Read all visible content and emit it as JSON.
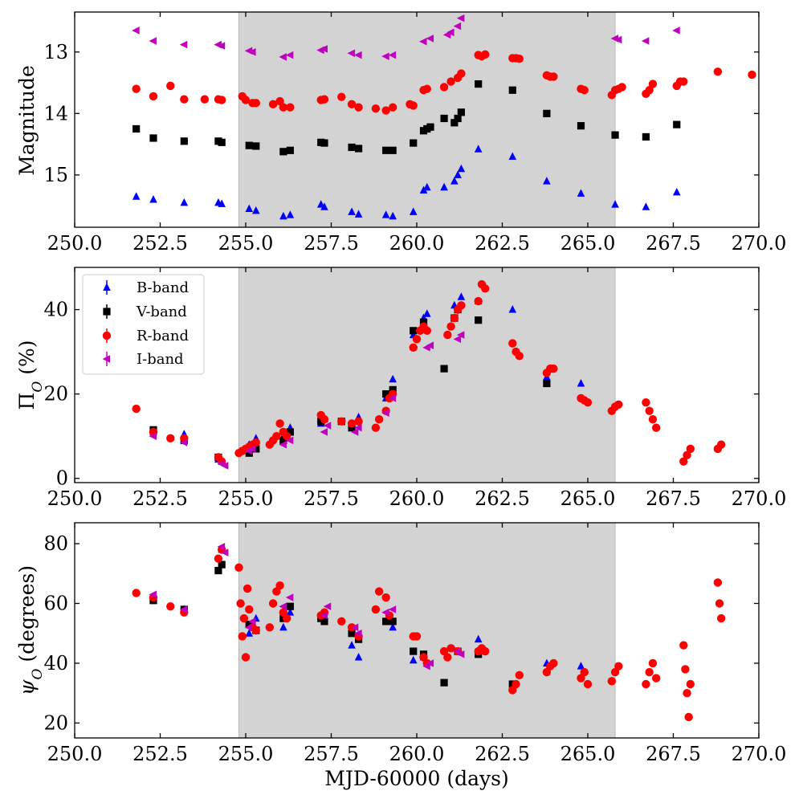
{
  "figure": {
    "xlabel": "MJD-60000 (days)",
    "colors": {
      "B": "#0000ff",
      "V": "#000000",
      "R": "#ff0000",
      "I": "#bf00bf",
      "shade": "#d3d3d3"
    }
  },
  "legend": [
    {
      "band": "B",
      "label": "B-band",
      "marker": "triangle-up",
      "color": "#0000ff"
    },
    {
      "band": "V",
      "label": "V-band",
      "marker": "square",
      "color": "#000000"
    },
    {
      "band": "R",
      "label": "R-band",
      "marker": "circle",
      "color": "#ff0000"
    },
    {
      "band": "I",
      "label": "I-band",
      "marker": "triangle-left",
      "color": "#bf00bf"
    }
  ],
  "chart_data": [
    {
      "type": "scatter",
      "id": "magnitude",
      "title": "",
      "xlabel": "",
      "ylabel": "Magnitude",
      "xlim": [
        250,
        270
      ],
      "ylim": [
        15.85,
        12.35
      ],
      "y_inverted": true,
      "xticks": [
        "250.0",
        "252.5",
        "255.0",
        "257.5",
        "260.0",
        "262.5",
        "265.0",
        "267.5",
        "270.0"
      ],
      "yticks": [
        "13",
        "14",
        "15"
      ],
      "shaded_region": [
        254.8,
        265.8
      ],
      "series": [
        {
          "name": "B-band",
          "x": [
            251.8,
            252.3,
            253.2,
            254.2,
            254.3,
            255.1,
            255.3,
            256.1,
            256.3,
            257.2,
            257.3,
            258.1,
            258.3,
            259.1,
            259.3,
            259.9,
            260.2,
            260.3,
            260.8,
            261.1,
            261.2,
            261.3,
            261.8,
            262.8,
            263.8,
            264.8,
            265.8,
            266.7,
            267.6
          ],
          "y": [
            15.35,
            15.4,
            15.45,
            15.45,
            15.47,
            15.55,
            15.58,
            15.67,
            15.65,
            15.48,
            15.52,
            15.6,
            15.64,
            15.65,
            15.67,
            15.6,
            15.25,
            15.2,
            15.2,
            15.1,
            15.0,
            14.9,
            14.58,
            14.7,
            15.1,
            15.3,
            15.48,
            15.52,
            15.28
          ]
        },
        {
          "name": "V-band",
          "x": [
            251.8,
            252.3,
            253.2,
            254.2,
            254.3,
            255.1,
            255.3,
            256.1,
            256.3,
            257.2,
            257.3,
            258.1,
            258.3,
            259.1,
            259.3,
            259.9,
            260.2,
            260.3,
            260.4,
            260.8,
            261.1,
            261.2,
            261.3,
            261.8,
            262.8,
            263.8,
            264.8,
            265.8,
            266.7,
            267.6
          ],
          "y": [
            14.25,
            14.4,
            14.45,
            14.45,
            14.47,
            14.52,
            14.53,
            14.62,
            14.6,
            14.47,
            14.48,
            14.55,
            14.57,
            14.6,
            14.6,
            14.48,
            14.28,
            14.25,
            14.22,
            14.08,
            14.15,
            14.08,
            13.98,
            13.52,
            13.62,
            14.0,
            14.2,
            14.35,
            14.38,
            14.18
          ]
        },
        {
          "name": "R-band",
          "x": [
            251.8,
            252.3,
            252.8,
            253.2,
            253.8,
            254.2,
            254.3,
            254.9,
            255.0,
            255.2,
            255.3,
            255.8,
            256.0,
            256.1,
            256.3,
            257.2,
            257.3,
            257.8,
            258.1,
            258.3,
            258.8,
            259.1,
            259.3,
            259.8,
            259.9,
            260.2,
            260.3,
            260.8,
            261.0,
            261.2,
            261.3,
            261.8,
            261.9,
            262.0,
            262.8,
            262.9,
            263.0,
            263.8,
            263.9,
            264.0,
            264.8,
            264.9,
            265.7,
            265.8,
            265.9,
            266.0,
            266.7,
            266.8,
            266.9,
            267.6,
            267.7,
            267.8,
            268.8,
            269.8
          ],
          "y": [
            13.6,
            13.72,
            13.55,
            13.77,
            13.77,
            13.77,
            13.78,
            13.72,
            13.78,
            13.83,
            13.83,
            13.85,
            13.8,
            13.9,
            13.9,
            13.78,
            13.77,
            13.73,
            13.85,
            13.9,
            13.92,
            13.95,
            13.9,
            13.85,
            13.87,
            13.62,
            13.6,
            13.57,
            13.48,
            13.42,
            13.35,
            13.05,
            13.07,
            13.04,
            13.1,
            13.1,
            13.11,
            13.38,
            13.4,
            13.4,
            13.6,
            13.62,
            13.7,
            13.62,
            13.6,
            13.57,
            13.68,
            13.62,
            13.52,
            13.55,
            13.48,
            13.48,
            13.32,
            13.37
          ]
        },
        {
          "name": "I-band",
          "x": [
            251.8,
            252.3,
            253.2,
            254.2,
            254.3,
            255.1,
            255.2,
            256.1,
            256.3,
            257.2,
            257.3,
            258.1,
            258.3,
            259.1,
            259.3,
            260.2,
            260.4,
            260.9,
            261.0,
            261.2,
            261.3,
            265.8,
            265.9,
            266.7,
            267.6
          ],
          "y": [
            12.65,
            12.82,
            12.88,
            12.88,
            12.9,
            12.98,
            13.0,
            13.08,
            13.05,
            12.97,
            12.95,
            13.02,
            13.05,
            13.07,
            13.05,
            12.83,
            12.78,
            12.72,
            12.68,
            12.58,
            12.45,
            12.78,
            12.8,
            12.82,
            12.65
          ]
        }
      ]
    },
    {
      "type": "scatter",
      "id": "polarization",
      "title": "",
      "xlabel": "",
      "ylabel": "Π_O (%)",
      "xlim": [
        250,
        270
      ],
      "ylim": [
        -1,
        50
      ],
      "xticks": [
        "250.0",
        "252.5",
        "255.0",
        "257.5",
        "260.0",
        "262.5",
        "265.0",
        "267.5",
        "270.0"
      ],
      "yticks": [
        "0",
        "20",
        "40"
      ],
      "shaded_region": [
        254.8,
        265.8
      ],
      "legend_position": "top-left",
      "series": [
        {
          "name": "B-band",
          "x": [
            252.3,
            253.2,
            254.2,
            254.3,
            255.1,
            255.3,
            256.1,
            256.3,
            257.2,
            257.3,
            258.1,
            258.3,
            259.1,
            259.3,
            259.9,
            260.2,
            260.3,
            261.1,
            261.3,
            261.8,
            262.8,
            263.8,
            264.8
          ],
          "y": [
            11,
            10.5,
            4.5,
            4,
            8,
            9.5,
            10,
            12,
            13,
            14,
            13,
            14.5,
            19,
            23.5,
            34,
            38,
            39,
            41,
            43,
            42,
            40,
            24,
            22.5
          ]
        },
        {
          "name": "V-band",
          "x": [
            252.3,
            253.2,
            254.2,
            255.1,
            255.3,
            256.1,
            256.3,
            257.2,
            257.8,
            258.1,
            259.1,
            259.3,
            259.9,
            260.2,
            260.8,
            261.1,
            261.2,
            261.8,
            263.8
          ],
          "y": [
            11.5,
            9,
            5,
            6,
            7,
            9,
            11,
            13.5,
            13.5,
            12,
            20,
            21,
            35,
            37,
            26,
            38,
            40,
            37.5,
            22.5
          ]
        },
        {
          "name": "R-band",
          "x": [
            251.8,
            252.3,
            252.8,
            253.2,
            254.2,
            254.3,
            254.8,
            254.9,
            255.0,
            255.1,
            255.2,
            255.3,
            255.7,
            255.8,
            255.9,
            256.0,
            256.1,
            256.2,
            257.2,
            257.3,
            257.8,
            258.1,
            258.3,
            258.8,
            258.9,
            259.1,
            259.2,
            259.3,
            259.9,
            260.0,
            260.1,
            260.2,
            260.3,
            260.9,
            261.0,
            261.1,
            261.2,
            261.3,
            261.8,
            261.9,
            262.0,
            262.8,
            262.9,
            263.0,
            263.8,
            263.9,
            264.0,
            264.8,
            264.9,
            265.0,
            265.7,
            265.8,
            265.9,
            266.7,
            266.8,
            266.9,
            267.0,
            267.8,
            267.9,
            268.0,
            268.8,
            268.9
          ],
          "y": [
            16.5,
            11,
            9.5,
            9.5,
            5,
            4,
            6,
            6.5,
            7,
            7.5,
            8,
            8.5,
            8,
            9,
            10,
            13,
            11,
            10,
            15,
            14,
            13.5,
            13,
            13.5,
            12,
            14,
            16,
            19,
            20,
            31,
            33,
            35,
            36,
            35,
            34,
            36,
            38,
            40,
            41,
            42,
            46,
            45,
            32,
            30,
            29,
            25,
            26,
            26,
            19,
            18.5,
            18,
            16,
            17,
            17.5,
            18,
            16,
            14,
            12,
            4,
            5.5,
            7,
            7,
            8
          ]
        },
        {
          "name": "I-band",
          "x": [
            252.3,
            253.2,
            254.3,
            254.4,
            255.1,
            255.2,
            256.1,
            256.3,
            257.3,
            257.4,
            258.2,
            258.3,
            259.1,
            259.3,
            260.3,
            260.4,
            261.2,
            261.3
          ],
          "y": [
            10,
            8.5,
            3.5,
            3,
            6.5,
            7,
            8,
            9,
            11,
            12.5,
            11,
            12,
            15.5,
            19,
            31,
            31.5,
            33,
            34
          ]
        }
      ]
    },
    {
      "type": "scatter",
      "id": "angle",
      "title": "",
      "xlabel": "MJD-60000 (days)",
      "ylabel": "ψ_O (degrees)",
      "xlim": [
        250,
        270
      ],
      "ylim": [
        15,
        87
      ],
      "xticks": [
        "250.0",
        "252.5",
        "255.0",
        "257.5",
        "260.0",
        "262.5",
        "265.0",
        "267.5",
        "270.0"
      ],
      "yticks": [
        "20",
        "40",
        "60",
        "80"
      ],
      "shaded_region": [
        254.8,
        265.8
      ],
      "series": [
        {
          "name": "B-band",
          "x": [
            252.3,
            253.2,
            254.3,
            255.1,
            255.3,
            256.1,
            256.3,
            257.3,
            258.1,
            258.3,
            259.1,
            259.3,
            259.9,
            260.2,
            261.8,
            263.8,
            264.8
          ],
          "y": [
            62,
            58,
            78,
            50,
            55,
            52,
            57,
            57,
            46,
            42,
            54,
            52,
            41,
            42,
            48,
            40,
            39
          ]
        },
        {
          "name": "V-band",
          "x": [
            252.3,
            253.2,
            254.2,
            254.3,
            255.1,
            255.3,
            256.1,
            256.3,
            257.2,
            257.3,
            258.1,
            258.3,
            259.1,
            259.3,
            259.9,
            260.2,
            260.8,
            261.2,
            261.8,
            262.8
          ],
          "y": [
            61,
            58,
            71,
            73,
            53,
            51,
            55,
            59,
            55,
            54,
            50,
            48,
            54,
            54,
            44,
            43,
            33.5,
            44,
            43,
            33
          ]
        },
        {
          "name": "R-band",
          "x": [
            251.8,
            252.3,
            252.8,
            253.2,
            254.2,
            254.3,
            254.8,
            254.85,
            254.9,
            254.95,
            255.0,
            255.05,
            255.1,
            255.2,
            255.3,
            255.7,
            255.8,
            255.9,
            256.0,
            256.1,
            256.2,
            257.2,
            257.3,
            257.8,
            258.1,
            258.3,
            258.8,
            258.9,
            259.1,
            259.2,
            259.9,
            260.0,
            260.2,
            260.3,
            260.8,
            260.9,
            261.0,
            261.2,
            261.8,
            261.9,
            262.0,
            262.8,
            262.9,
            263.0,
            263.8,
            263.9,
            264.0,
            264.8,
            264.9,
            265.0,
            265.7,
            265.8,
            265.9,
            266.7,
            266.8,
            266.9,
            267.0,
            267.8,
            267.85,
            267.9,
            267.95,
            268.0,
            268.8,
            268.85,
            268.9
          ],
          "y": [
            63.5,
            62,
            59,
            57,
            75,
            78,
            72,
            60,
            49,
            55,
            42,
            65,
            58,
            52,
            51,
            52,
            60,
            64,
            66,
            57,
            55,
            56,
            57,
            54,
            52,
            49,
            58,
            64,
            62,
            56,
            49,
            49,
            42,
            40,
            44,
            42,
            45,
            44,
            44,
            45,
            44,
            31,
            33,
            36,
            37,
            39,
            40,
            35,
            37,
            33,
            34,
            37,
            39,
            33,
            37,
            40,
            35,
            46,
            38,
            30,
            22,
            33,
            67,
            60,
            55
          ]
        },
        {
          "name": "I-band",
          "x": [
            252.3,
            253.2,
            254.3,
            254.4,
            255.1,
            255.2,
            256.1,
            256.3,
            257.3,
            257.4,
            258.2,
            258.3,
            259.1,
            259.3,
            260.3,
            260.4,
            261.2,
            261.3
          ],
          "y": [
            63,
            58,
            79,
            77,
            52,
            54,
            59,
            62,
            56,
            59,
            52,
            50,
            57,
            58,
            39,
            40,
            44,
            43
          ]
        }
      ]
    }
  ]
}
